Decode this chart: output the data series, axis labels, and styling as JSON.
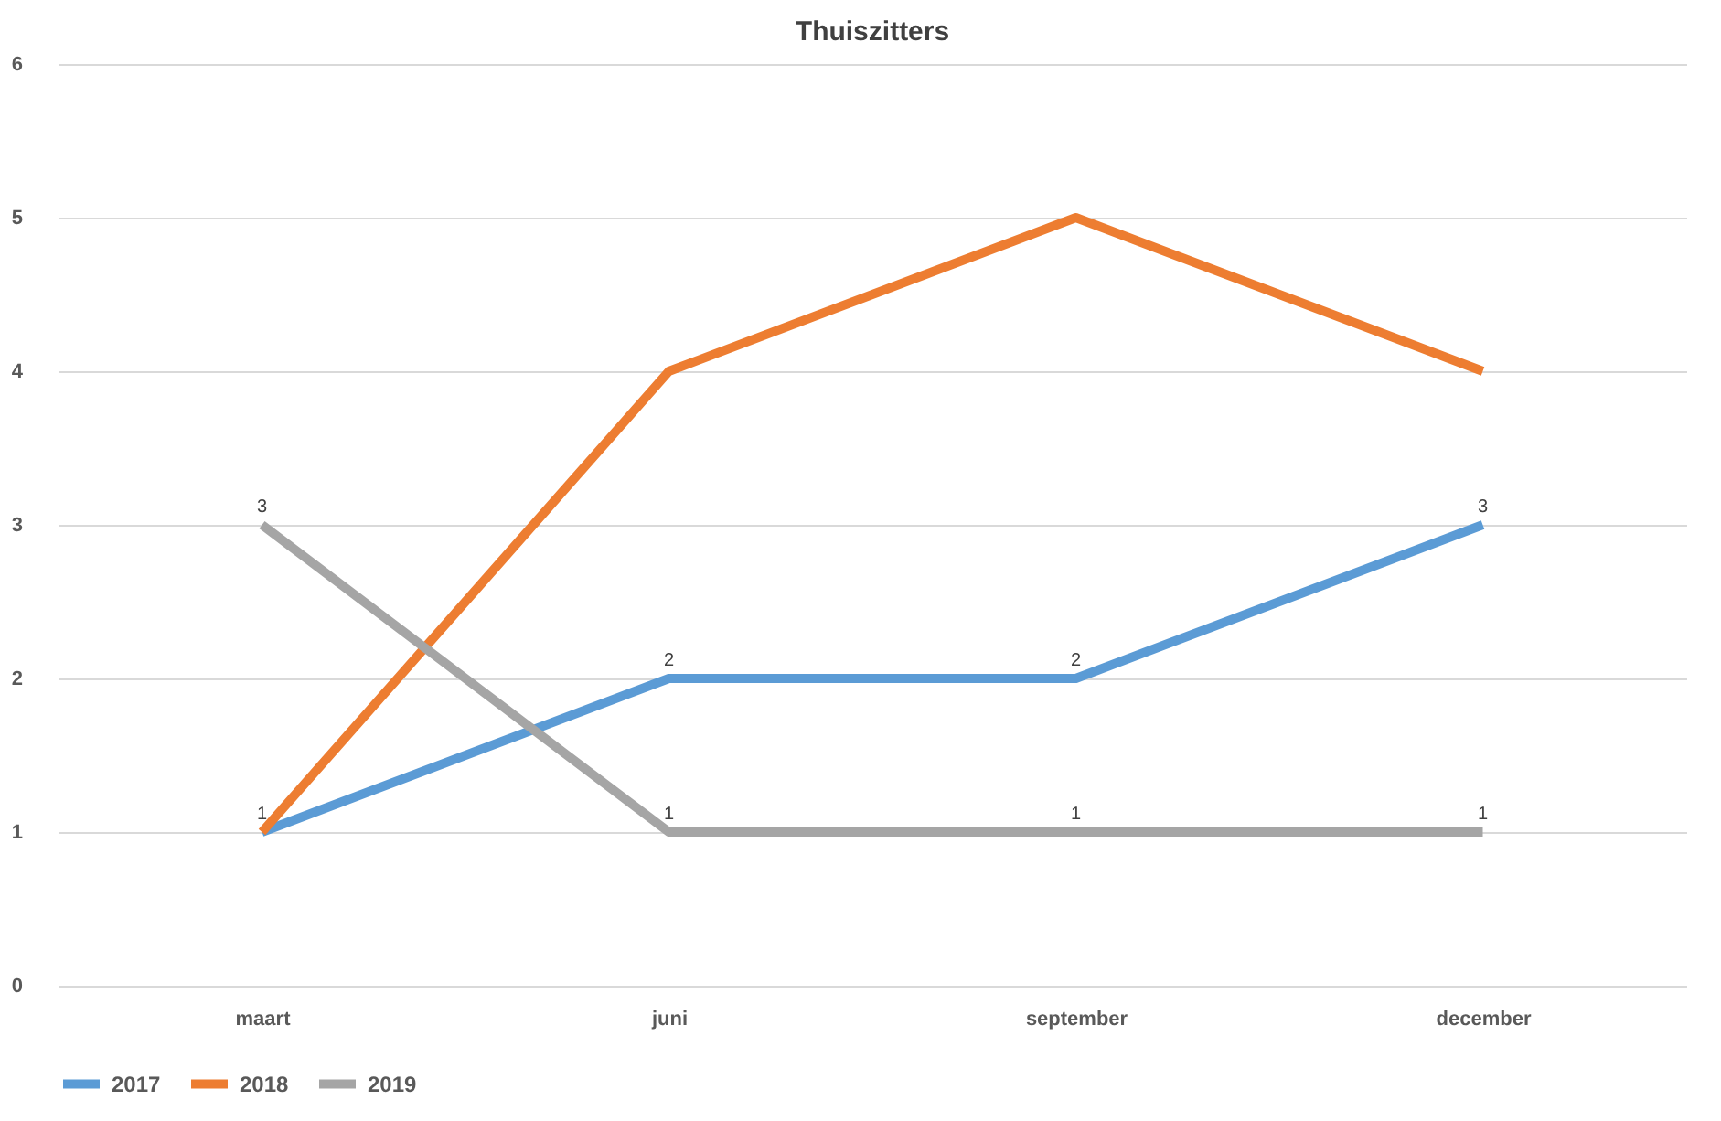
{
  "chart_data": {
    "type": "line",
    "title": "Thuiszitters",
    "categories": [
      "maart",
      "juni",
      "september",
      "december"
    ],
    "series": [
      {
        "name": "2017",
        "color": "#5b9bd5",
        "values": [
          1,
          2,
          2,
          3
        ],
        "value_labels": [
          null,
          "2",
          "2",
          "3"
        ]
      },
      {
        "name": "2018",
        "color": "#ed7d31",
        "values": [
          1,
          4,
          5,
          4
        ],
        "value_labels": [
          "1",
          null,
          null,
          null
        ]
      },
      {
        "name": "2019",
        "color": "#a5a5a5",
        "values": [
          3,
          1,
          1,
          1
        ],
        "value_labels": [
          "3",
          "1",
          "1",
          "1"
        ]
      }
    ],
    "ylim": [
      0,
      6
    ],
    "yticks": [
      0,
      1,
      2,
      3,
      4,
      5,
      6
    ],
    "grid": "y",
    "legend": "bottom",
    "line_style": "solid",
    "marker": "none"
  }
}
